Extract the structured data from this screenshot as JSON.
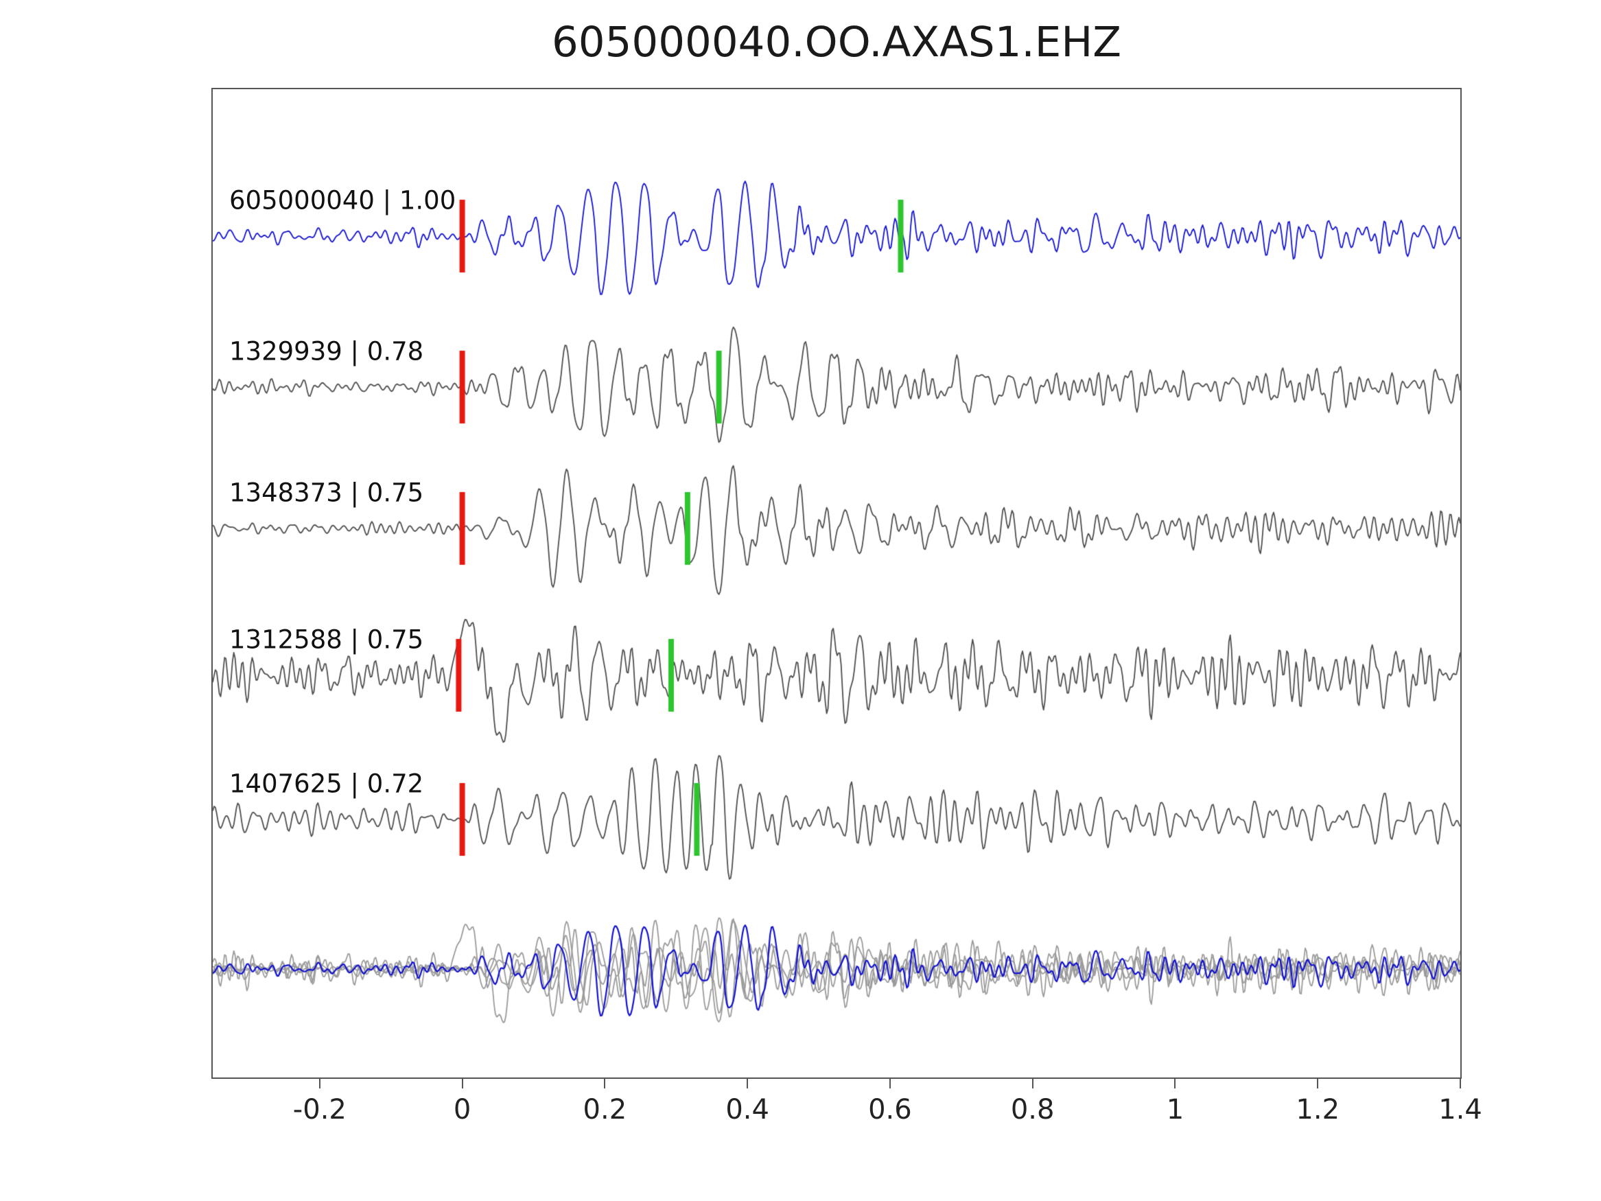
{
  "title": "605000040.OO.AXAS1.EHZ",
  "chart_data": {
    "type": "line",
    "title": "605000040.OO.AXAS1.EHZ",
    "description": "Waveform correlation plot: template event and four detections on channel OO.AXAS1.EHZ, bottom row shows all traces overlaid",
    "xlim": [
      -0.35,
      1.4
    ],
    "x_ticks": [
      -0.2,
      0,
      0.2,
      0.4,
      0.6,
      0.8,
      1,
      1.2,
      1.4
    ],
    "x_tick_labels": [
      "-0.2",
      "0",
      "0.2",
      "0.4",
      "0.6",
      "0.8",
      "1",
      "1.2",
      "1.4"
    ],
    "axis_color": "#555555",
    "pick_colors": {
      "red": "#e41a10",
      "green": "#2fc52f"
    },
    "traces": [
      {
        "label": "605000040 | 1.00",
        "event_id": "605000040",
        "correlation": 1.0,
        "color": "#1111cf",
        "red_pick_x": 0.0,
        "green_pick_x": 0.615,
        "seed": 11,
        "pre": 12,
        "burst": 100,
        "coda": 26,
        "clip": 135,
        "f0": 21,
        "fspread": 13
      },
      {
        "label": "1329939 | 0.78",
        "event_id": "1329939",
        "correlation": 0.78,
        "color": "#4d4d4d",
        "red_pick_x": 0.0,
        "green_pick_x": 0.36,
        "seed": 27,
        "pre": 10,
        "burst": 105,
        "coda": 27,
        "clip": 140,
        "f0": 20,
        "fspread": 13
      },
      {
        "label": "1348373 | 0.75",
        "event_id": "1348373",
        "correlation": 0.75,
        "color": "#4d4d4d",
        "red_pick_x": 0.0,
        "green_pick_x": 0.316,
        "seed": 39,
        "pre": 10,
        "burst": 105,
        "coda": 27,
        "clip": 140,
        "f0": 21,
        "fspread": 12
      },
      {
        "label": "1312588 | 0.75",
        "event_id": "1312588",
        "correlation": 0.75,
        "color": "#4d4d4d",
        "red_pick_x": -0.005,
        "green_pick_x": 0.293,
        "seed": 52,
        "pre": 30,
        "burst": 80,
        "coda": 44,
        "clip": 120,
        "f0": 24,
        "fspread": 14,
        "spikes": [
          [
            0.012,
            0.018,
            105
          ],
          [
            0.05,
            0.025,
            -85
          ]
        ]
      },
      {
        "label": "1407625 | 0.72",
        "event_id": "1407625",
        "correlation": 0.72,
        "color": "#4d4d4d",
        "red_pick_x": 0.0,
        "green_pick_x": 0.329,
        "seed": 66,
        "pre": 17,
        "burst": 88,
        "coda": 36,
        "clip": 125,
        "f0": 22,
        "fspread": 14
      }
    ],
    "overlay": {
      "gray_color": "#9a9a9a",
      "highlight_color": "#1111cf",
      "scale": 0.8
    }
  }
}
